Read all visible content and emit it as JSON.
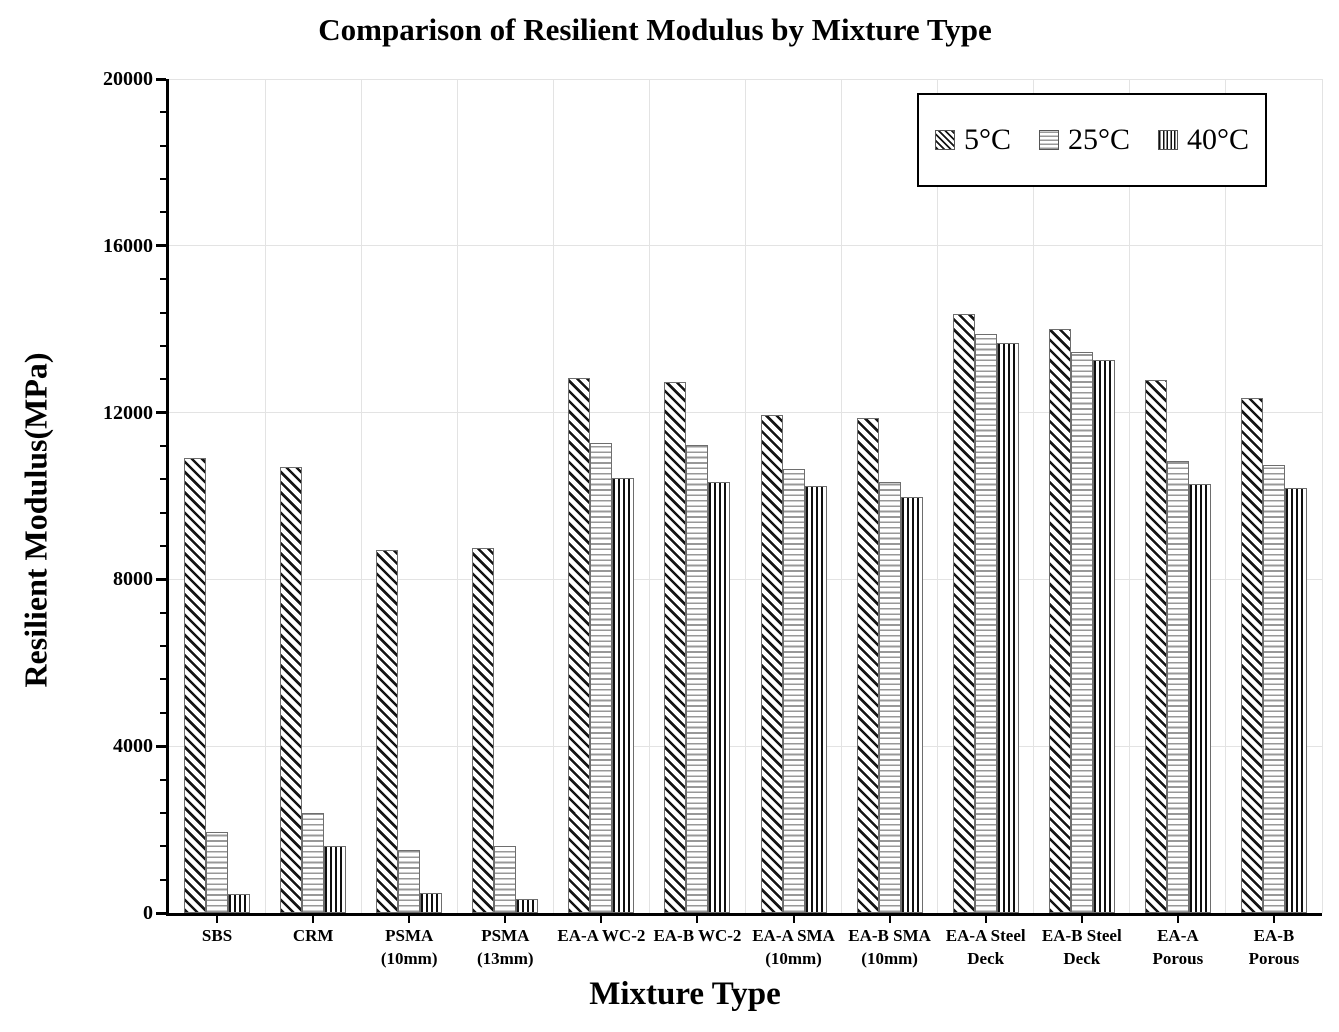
{
  "chart_data": {
    "type": "bar",
    "title": "Comparison of Resilient Modulus by Mixture Type",
    "xlabel": "Mixture Type",
    "ylabel": "Resilient Modulus(MPa)",
    "ylim": [
      0,
      20000
    ],
    "yticks": [
      0,
      4000,
      8000,
      12000,
      16000,
      20000
    ],
    "y_minor_step": 800,
    "grid": true,
    "legend_position": "top-right",
    "bar_colors": {
      "foreground": "#000000",
      "background": "#ffffff",
      "gridline": "#e3e3e3"
    },
    "categories": [
      "SBS",
      "CRM",
      "PSMA\n(10mm)",
      "PSMA\n(13mm)",
      "EA-A WC-2",
      "EA-B WC-2",
      "EA-A SMA\n(10mm)",
      "EA-B SMA\n(10mm)",
      "EA-A Steel\nDeck",
      "EA-B Steel\nDeck",
      "EA-A\nPorous",
      "EA-B\nPorous"
    ],
    "series": [
      {
        "name": "5°C",
        "pattern": "diagonal",
        "values": [
          10900,
          10700,
          8700,
          8750,
          12830,
          12730,
          11950,
          11880,
          14360,
          14000,
          12780,
          12350
        ]
      },
      {
        "name": "25°C",
        "pattern": "horizontal",
        "values": [
          1950,
          2400,
          1500,
          1600,
          11280,
          11230,
          10650,
          10340,
          13880,
          13460,
          10830,
          10740
        ]
      },
      {
        "name": "40°C",
        "pattern": "vertical",
        "values": [
          450,
          1600,
          480,
          330,
          10440,
          10340,
          10230,
          9980,
          13660,
          13260,
          10300,
          10200
        ]
      }
    ]
  }
}
